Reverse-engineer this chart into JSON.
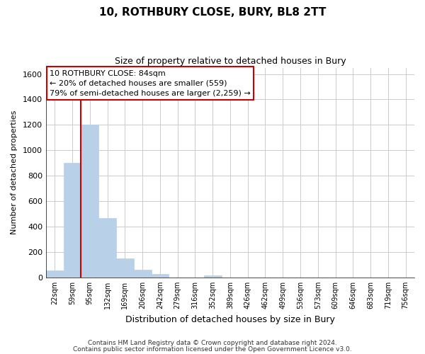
{
  "title": "10, ROTHBURY CLOSE, BURY, BL8 2TT",
  "subtitle": "Size of property relative to detached houses in Bury",
  "xlabel": "Distribution of detached houses by size in Bury",
  "ylabel": "Number of detached properties",
  "bar_labels": [
    "22sqm",
    "59sqm",
    "95sqm",
    "132sqm",
    "169sqm",
    "206sqm",
    "242sqm",
    "279sqm",
    "316sqm",
    "352sqm",
    "389sqm",
    "426sqm",
    "462sqm",
    "499sqm",
    "536sqm",
    "573sqm",
    "609sqm",
    "646sqm",
    "683sqm",
    "719sqm",
    "756sqm"
  ],
  "bar_values": [
    55,
    900,
    1200,
    470,
    150,
    60,
    28,
    0,
    0,
    18,
    0,
    0,
    0,
    0,
    0,
    0,
    0,
    0,
    0,
    0,
    0
  ],
  "bar_color": "#b8d0e8",
  "bar_edge_color": "#b8d0e8",
  "ylim": [
    0,
    1650
  ],
  "yticks": [
    0,
    200,
    400,
    600,
    800,
    1000,
    1200,
    1400,
    1600
  ],
  "property_line_x": 1.5,
  "property_line_color": "#cc0000",
  "annotation_line1": "10 ROTHBURY CLOSE: 84sqm",
  "annotation_line2": "← 20% of detached houses are smaller (559)",
  "annotation_line3": "79% of semi-detached houses are larger (2,259) →",
  "footer_line1": "Contains HM Land Registry data © Crown copyright and database right 2024.",
  "footer_line2": "Contains public sector information licensed under the Open Government Licence v3.0.",
  "background_color": "#ffffff",
  "grid_color": "#cccccc",
  "figure_width": 6.0,
  "figure_height": 5.0,
  "dpi": 100
}
